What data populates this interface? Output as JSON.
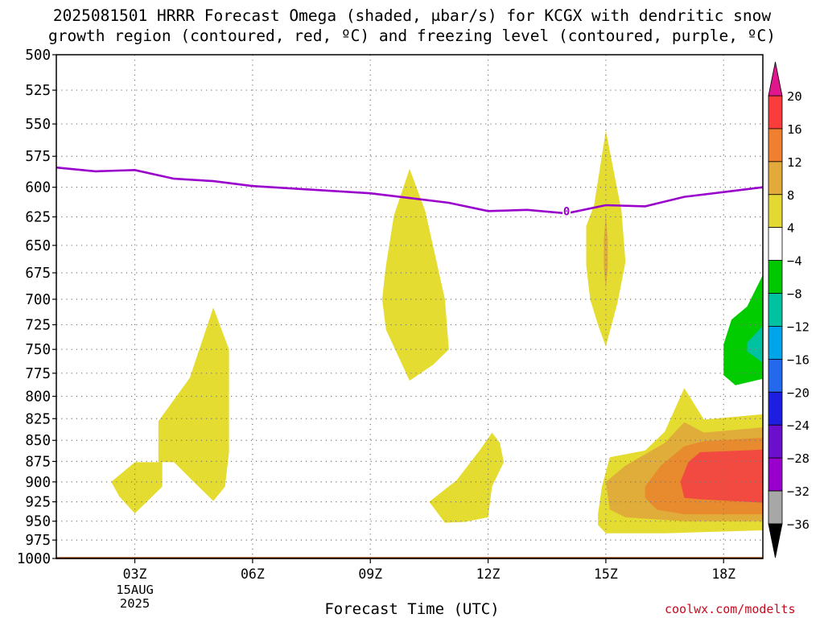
{
  "title_line1": "2025081501 HRRR Forecast Omega (shaded, μbar/s) for KCGX with dendritic snow",
  "title_line2": "growth region (contoured, red, ºC) and freezing level (contoured, purple, ºC)",
  "credit": "coolwx.com/modelts",
  "chart_data": {
    "type": "time-height contour",
    "xlabel": "Forecast Time (UTC)",
    "ylabel": "",
    "y_scale": "pressure (log), reversed",
    "ylim": [
      1000,
      500
    ],
    "xlim_hours": [
      1,
      19
    ],
    "y_ticks": [
      500,
      525,
      550,
      575,
      600,
      625,
      650,
      675,
      700,
      725,
      750,
      775,
      800,
      825,
      850,
      875,
      900,
      925,
      950,
      975,
      1000
    ],
    "x_ticks": [
      {
        "hour": 3,
        "label": "03Z",
        "sub": [
          "15AUG",
          "2025"
        ]
      },
      {
        "hour": 6,
        "label": "06Z"
      },
      {
        "hour": 9,
        "label": "09Z"
      },
      {
        "hour": 12,
        "label": "12Z"
      },
      {
        "hour": 15,
        "label": "15Z"
      },
      {
        "hour": 18,
        "label": "18Z"
      }
    ],
    "grid": true,
    "freezing_level": {
      "color": "#9900cc",
      "label": "0",
      "label_at": [
        14,
        620
      ],
      "points": [
        [
          1,
          584
        ],
        [
          2,
          587
        ],
        [
          3,
          586
        ],
        [
          4,
          593
        ],
        [
          5,
          595
        ],
        [
          6,
          599
        ],
        [
          7,
          601
        ],
        [
          8,
          603
        ],
        [
          9,
          605
        ],
        [
          10,
          609
        ],
        [
          11,
          613
        ],
        [
          12,
          620
        ],
        [
          13,
          619
        ],
        [
          14,
          622
        ],
        [
          15,
          615
        ],
        [
          16,
          616
        ],
        [
          17,
          608
        ],
        [
          18,
          604
        ],
        [
          19,
          600
        ]
      ]
    },
    "omega_regions": [
      {
        "color": "#e5dc32",
        "points": [
          [
            2.4,
            900
          ],
          [
            3.0,
            876
          ],
          [
            3.6,
            876
          ],
          [
            3.6,
            828
          ],
          [
            4.4,
            780
          ],
          [
            5.0,
            708
          ],
          [
            5.4,
            750
          ],
          [
            5.4,
            864
          ],
          [
            5.3,
            906
          ],
          [
            5.0,
            924
          ],
          [
            4.5,
            900
          ],
          [
            4.0,
            876
          ],
          [
            3.7,
            876
          ],
          [
            3.7,
            906
          ],
          [
            3.0,
            940
          ],
          [
            2.6,
            918
          ]
        ]
      },
      {
        "color": "#e5dc32",
        "points": [
          [
            9.4,
            668
          ],
          [
            9.6,
            624
          ],
          [
            10.0,
            585
          ],
          [
            10.4,
            620
          ],
          [
            10.9,
            700
          ],
          [
            11.0,
            750
          ],
          [
            10.6,
            766
          ],
          [
            10.0,
            783
          ],
          [
            9.4,
            730
          ],
          [
            9.3,
            700
          ]
        ]
      },
      {
        "color": "#e5dc32",
        "points": [
          [
            10.5,
            925
          ],
          [
            11.2,
            898
          ],
          [
            11.8,
            861
          ],
          [
            12.1,
            841
          ],
          [
            12.3,
            853
          ],
          [
            12.4,
            876
          ],
          [
            12.1,
            906
          ],
          [
            12.0,
            945
          ],
          [
            11.4,
            951
          ],
          [
            10.9,
            952
          ]
        ]
      },
      {
        "color": "#e5dc32",
        "points": [
          [
            14.5,
            633
          ],
          [
            14.7,
            615
          ],
          [
            15.0,
            555
          ],
          [
            15.4,
            620
          ],
          [
            15.5,
            665
          ],
          [
            15.3,
            703
          ],
          [
            15.0,
            747
          ],
          [
            14.8,
            725
          ],
          [
            14.6,
            700
          ],
          [
            14.5,
            668
          ]
        ]
      },
      {
        "color": "#e5dc32",
        "points": [
          [
            14.8,
            941
          ],
          [
            14.9,
            906
          ],
          [
            15.1,
            870
          ],
          [
            16.0,
            862
          ],
          [
            16.5,
            840
          ],
          [
            17.0,
            791
          ],
          [
            17.5,
            826
          ],
          [
            18.0,
            824
          ],
          [
            19.0,
            820
          ],
          [
            19.0,
            962
          ],
          [
            16.5,
            966
          ],
          [
            15.0,
            966
          ],
          [
            14.8,
            955
          ]
        ]
      },
      {
        "color": "#e0ac3a",
        "points": [
          [
            15.0,
            900
          ],
          [
            15.5,
            880
          ],
          [
            16.5,
            853
          ],
          [
            17.0,
            829
          ],
          [
            17.5,
            841
          ],
          [
            19.0,
            835
          ],
          [
            19.0,
            950
          ],
          [
            17.0,
            950
          ],
          [
            15.5,
            945
          ],
          [
            15.1,
            935
          ]
        ]
      },
      {
        "color": "#e88a2e",
        "points": [
          [
            16.0,
            906
          ],
          [
            16.4,
            880
          ],
          [
            17.0,
            857
          ],
          [
            17.5,
            851
          ],
          [
            19.0,
            847
          ],
          [
            19.0,
            941
          ],
          [
            17.0,
            941
          ],
          [
            16.3,
            935
          ],
          [
            16.0,
            920
          ]
        ]
      },
      {
        "color": "#f24a41",
        "points": [
          [
            16.9,
            900
          ],
          [
            17.1,
            876
          ],
          [
            17.4,
            864
          ],
          [
            19.0,
            861
          ],
          [
            19.0,
            926
          ],
          [
            17.5,
            922
          ],
          [
            17.0,
            920
          ]
        ]
      },
      {
        "color": "#e0ac3a",
        "points": [
          [
            14.95,
            645
          ],
          [
            15.0,
            622
          ],
          [
            15.05,
            645
          ],
          [
            15.05,
            670
          ],
          [
            15.0,
            690
          ],
          [
            14.95,
            670
          ]
        ]
      },
      {
        "color": "#00cc00",
        "points": [
          [
            18.0,
            745
          ],
          [
            18.2,
            720
          ],
          [
            18.6,
            707
          ],
          [
            19.0,
            677
          ],
          [
            19.0,
            781
          ],
          [
            18.3,
            788
          ],
          [
            18.0,
            777
          ]
        ]
      },
      {
        "color": "#00c2a0",
        "points": [
          [
            18.6,
            743
          ],
          [
            19.0,
            726
          ],
          [
            19.0,
            764
          ],
          [
            18.6,
            752
          ]
        ]
      }
    ],
    "surface_band": {
      "color": "#a55a28",
      "pressure": 998
    },
    "colorbar": {
      "labels": [
        "20",
        "16",
        "12",
        "8",
        "4",
        "-4",
        "-8",
        "-12",
        "-16",
        "-20",
        "-24",
        "-28",
        "-32",
        "-36"
      ],
      "colors": [
        "#fb3c3c",
        "#ee8030",
        "#e2a93b",
        "#e4d933",
        "#ffffff",
        "#00c800",
        "#00c2a0",
        "#00a4e8",
        "#2468ec",
        "#1d1ee0",
        "#6a10cc",
        "#9900cc",
        "#a7a7a7"
      ],
      "top_arrow_color": "#e0168c",
      "bottom_arrow_color": "#000000"
    }
  }
}
